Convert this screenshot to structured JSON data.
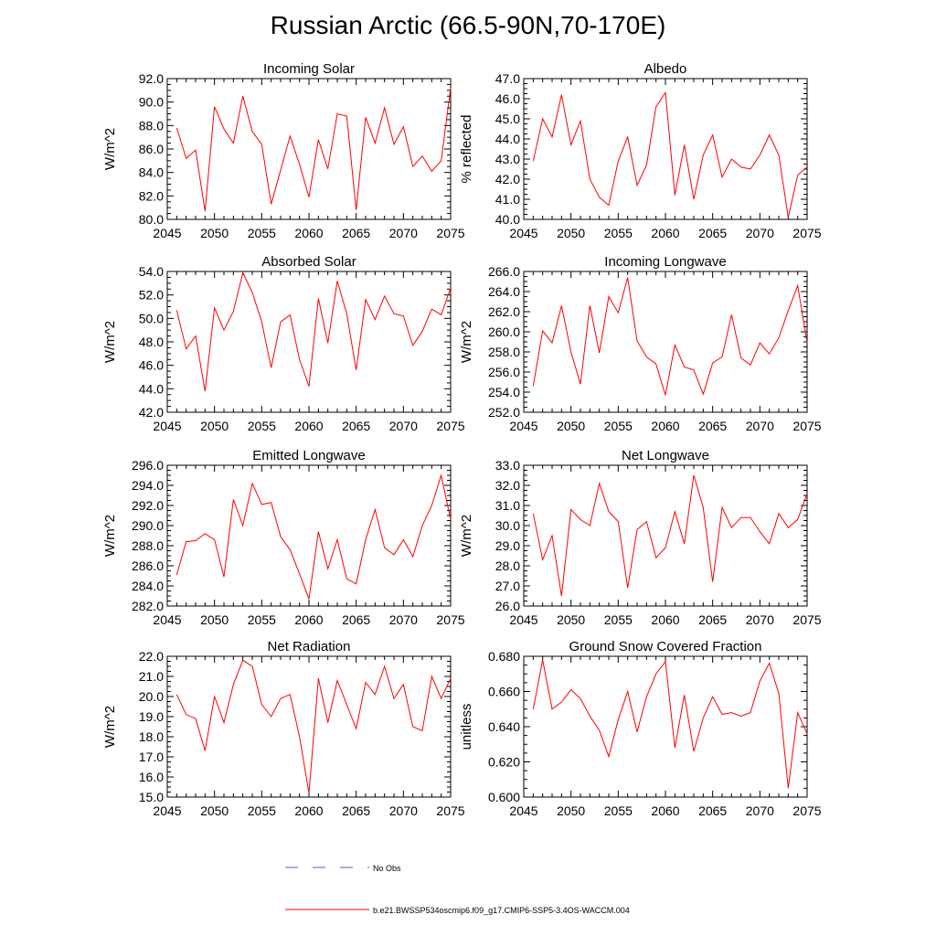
{
  "page_title": "Russian Arctic (66.5-90N,70-170E)",
  "legend": {
    "obs_label": "No Obs",
    "model_label": "b.e21.BWSSP534oscmip6.f09_g17.CMIP6-SSP5-3.4OS-WACCM.004",
    "obs_color": "#5a5acb",
    "model_color": "#ff0000"
  },
  "chart_data": [
    {
      "type": "line",
      "title": "Incoming Solar",
      "ylabel": "W/m^2",
      "xlim": [
        2045,
        2075
      ],
      "ylim": [
        80.0,
        92.0
      ],
      "ystep": 2.0,
      "ydec": 1,
      "yticks_labels": [
        "80.0",
        "82.0",
        "84.0",
        "86.0",
        "88.0",
        "90.0",
        "92.0"
      ],
      "xticks": [
        2045,
        2050,
        2055,
        2060,
        2065,
        2070,
        2075
      ],
      "x": [
        2046,
        2047,
        2048,
        2049,
        2050,
        2051,
        2052,
        2053,
        2054,
        2055,
        2056,
        2057,
        2058,
        2059,
        2060,
        2061,
        2062,
        2063,
        2064,
        2065,
        2066,
        2067,
        2068,
        2069,
        2070,
        2071,
        2072,
        2073,
        2074,
        2075
      ],
      "values": [
        87.8,
        85.2,
        85.9,
        80.7,
        89.6,
        87.7,
        86.5,
        90.5,
        87.5,
        86.4,
        81.3,
        84.2,
        87.1,
        84.7,
        81.9,
        86.8,
        84.3,
        89.0,
        88.8,
        80.8,
        88.7,
        86.5,
        89.5,
        86.4,
        87.9,
        84.5,
        85.4,
        84.1,
        85.0,
        91.2
      ],
      "color": "#ff0000"
    },
    {
      "type": "line",
      "title": "Albedo",
      "ylabel": "% reflected",
      "xlim": [
        2045,
        2075
      ],
      "ylim": [
        40.0,
        47.0
      ],
      "ystep": 1.0,
      "ydec": 1,
      "yticks_labels": [
        "40.0",
        "41.0",
        "42.0",
        "43.0",
        "44.0",
        "45.0",
        "46.0",
        "47.0"
      ],
      "xticks": [
        2045,
        2050,
        2055,
        2060,
        2065,
        2070,
        2075
      ],
      "x": [
        2046,
        2047,
        2048,
        2049,
        2050,
        2051,
        2052,
        2053,
        2054,
        2055,
        2056,
        2057,
        2058,
        2059,
        2060,
        2061,
        2062,
        2063,
        2064,
        2065,
        2066,
        2067,
        2068,
        2069,
        2070,
        2071,
        2072,
        2073,
        2074,
        2075
      ],
      "values": [
        42.9,
        45.0,
        44.1,
        46.2,
        43.7,
        44.9,
        42.0,
        41.1,
        40.7,
        42.9,
        44.1,
        41.7,
        42.7,
        45.6,
        46.3,
        41.2,
        43.7,
        41.0,
        43.2,
        44.2,
        42.1,
        43.0,
        42.6,
        42.5,
        43.2,
        44.2,
        43.2,
        40.1,
        42.2,
        42.6
      ],
      "color": "#ff0000"
    },
    {
      "type": "line",
      "title": "Absorbed Solar",
      "ylabel": "W/m^2",
      "xlim": [
        2045,
        2075
      ],
      "ylim": [
        42.0,
        54.0
      ],
      "ystep": 2.0,
      "ydec": 1,
      "yticks_labels": [
        "42.0",
        "44.0",
        "46.0",
        "48.0",
        "50.0",
        "52.0",
        "54.0"
      ],
      "xticks": [
        2045,
        2050,
        2055,
        2060,
        2065,
        2070,
        2075
      ],
      "x": [
        2046,
        2047,
        2048,
        2049,
        2050,
        2051,
        2052,
        2053,
        2054,
        2055,
        2056,
        2057,
        2058,
        2059,
        2060,
        2061,
        2062,
        2063,
        2064,
        2065,
        2066,
        2067,
        2068,
        2069,
        2070,
        2071,
        2072,
        2073,
        2074,
        2075
      ],
      "values": [
        50.7,
        47.4,
        48.5,
        43.8,
        50.9,
        49.0,
        50.6,
        53.9,
        52.2,
        49.7,
        45.8,
        49.7,
        50.3,
        46.5,
        44.2,
        51.7,
        47.9,
        53.2,
        50.4,
        45.6,
        51.6,
        49.9,
        51.9,
        50.4,
        50.2,
        47.7,
        48.9,
        50.8,
        50.3,
        52.6
      ],
      "color": "#ff0000"
    },
    {
      "type": "line",
      "title": "Incoming Longwave",
      "ylabel": "W/m^2",
      "xlim": [
        2045,
        2075
      ],
      "ylim": [
        252.0,
        266.0
      ],
      "ystep": 2.0,
      "ydec": 1,
      "yticks_labels": [
        "252.0",
        "254.0",
        "256.0",
        "258.0",
        "260.0",
        "262.0",
        "264.0",
        "266.0"
      ],
      "xticks": [
        2045,
        2050,
        2055,
        2060,
        2065,
        2070,
        2075
      ],
      "x": [
        2046,
        2047,
        2048,
        2049,
        2050,
        2051,
        2052,
        2053,
        2054,
        2055,
        2056,
        2057,
        2058,
        2059,
        2060,
        2061,
        2062,
        2063,
        2064,
        2065,
        2066,
        2067,
        2068,
        2069,
        2070,
        2071,
        2072,
        2073,
        2074,
        2075
      ],
      "values": [
        254.6,
        260.1,
        258.9,
        262.6,
        258.0,
        254.8,
        262.6,
        257.9,
        263.5,
        261.9,
        265.4,
        259.1,
        257.5,
        256.8,
        253.7,
        258.7,
        256.5,
        256.2,
        253.8,
        256.9,
        257.5,
        261.7,
        257.4,
        256.7,
        258.9,
        257.8,
        259.4,
        262.1,
        264.6,
        258.9
      ],
      "color": "#ff0000"
    },
    {
      "type": "line",
      "title": "Emitted Longwave",
      "ylabel": "W/m^2",
      "xlim": [
        2045,
        2075
      ],
      "ylim": [
        282.0,
        296.0
      ],
      "ystep": 2.0,
      "ydec": 1,
      "yticks_labels": [
        "282.0",
        "284.0",
        "286.0",
        "288.0",
        "290.0",
        "292.0",
        "294.0",
        "296.0"
      ],
      "xticks": [
        2045,
        2050,
        2055,
        2060,
        2065,
        2070,
        2075
      ],
      "x": [
        2046,
        2047,
        2048,
        2049,
        2050,
        2051,
        2052,
        2053,
        2054,
        2055,
        2056,
        2057,
        2058,
        2059,
        2060,
        2061,
        2062,
        2063,
        2064,
        2065,
        2066,
        2067,
        2068,
        2069,
        2070,
        2071,
        2072,
        2073,
        2074,
        2075
      ],
      "values": [
        285.1,
        288.4,
        288.5,
        289.2,
        288.6,
        284.9,
        292.6,
        290.0,
        294.2,
        292.1,
        292.3,
        288.9,
        287.6,
        285.2,
        282.7,
        289.4,
        285.7,
        288.6,
        284.7,
        284.2,
        288.6,
        291.6,
        287.8,
        287.1,
        288.6,
        286.9,
        290.0,
        292.0,
        295.0,
        290.6
      ],
      "color": "#ff0000"
    },
    {
      "type": "line",
      "title": "Net Longwave",
      "ylabel": "W/m^2",
      "xlim": [
        2045,
        2075
      ],
      "ylim": [
        26.0,
        33.0
      ],
      "ystep": 1.0,
      "ydec": 1,
      "yticks_labels": [
        "26.0",
        "27.0",
        "28.0",
        "29.0",
        "30.0",
        "31.0",
        "32.0",
        "33.0"
      ],
      "xticks": [
        2045,
        2050,
        2055,
        2060,
        2065,
        2070,
        2075
      ],
      "x": [
        2046,
        2047,
        2048,
        2049,
        2050,
        2051,
        2052,
        2053,
        2054,
        2055,
        2056,
        2057,
        2058,
        2059,
        2060,
        2061,
        2062,
        2063,
        2064,
        2065,
        2066,
        2067,
        2068,
        2069,
        2070,
        2071,
        2072,
        2073,
        2074,
        2075
      ],
      "values": [
        30.6,
        28.3,
        29.5,
        26.5,
        30.8,
        30.3,
        30.0,
        32.1,
        30.7,
        30.2,
        26.9,
        29.8,
        30.2,
        28.4,
        28.9,
        30.7,
        29.1,
        32.5,
        30.9,
        27.2,
        30.9,
        29.9,
        30.4,
        30.4,
        29.7,
        29.1,
        30.6,
        29.9,
        30.3,
        31.6
      ],
      "color": "#ff0000"
    },
    {
      "type": "line",
      "title": "Net Radiation",
      "ylabel": "W/m^2",
      "xlim": [
        2045,
        2075
      ],
      "ylim": [
        15.0,
        22.0
      ],
      "ystep": 1.0,
      "ydec": 1,
      "yticks_labels": [
        "15.0",
        "16.0",
        "17.0",
        "18.0",
        "19.0",
        "20.0",
        "21.0",
        "22.0"
      ],
      "xticks": [
        2045,
        2050,
        2055,
        2060,
        2065,
        2070,
        2075
      ],
      "x": [
        2046,
        2047,
        2048,
        2049,
        2050,
        2051,
        2052,
        2053,
        2054,
        2055,
        2056,
        2057,
        2058,
        2059,
        2060,
        2061,
        2062,
        2063,
        2064,
        2065,
        2066,
        2067,
        2068,
        2069,
        2070,
        2071,
        2072,
        2073,
        2074,
        2075
      ],
      "values": [
        20.1,
        19.1,
        18.9,
        17.3,
        20.0,
        18.7,
        20.6,
        21.8,
        21.5,
        19.6,
        19.0,
        19.9,
        20.1,
        18.0,
        15.2,
        20.9,
        18.7,
        20.8,
        19.6,
        18.4,
        20.7,
        20.1,
        21.5,
        19.9,
        20.6,
        18.5,
        18.3,
        21.0,
        19.9,
        20.9
      ],
      "color": "#ff0000"
    },
    {
      "type": "line",
      "title": "Ground Snow Covered Fraction",
      "ylabel": "unitless",
      "xlim": [
        2045,
        2075
      ],
      "ylim": [
        0.6,
        0.68
      ],
      "ystep": 0.02,
      "ydec": 3,
      "yticks_labels": [
        "0.600",
        "0.620",
        "0.640",
        "0.660",
        "0.680"
      ],
      "xticks": [
        2045,
        2050,
        2055,
        2060,
        2065,
        2070,
        2075
      ],
      "x": [
        2046,
        2047,
        2048,
        2049,
        2050,
        2051,
        2052,
        2053,
        2054,
        2055,
        2056,
        2057,
        2058,
        2059,
        2060,
        2061,
        2062,
        2063,
        2064,
        2065,
        2066,
        2067,
        2068,
        2069,
        2070,
        2071,
        2072,
        2073,
        2074,
        2075
      ],
      "values": [
        0.65,
        0.678,
        0.65,
        0.654,
        0.661,
        0.656,
        0.646,
        0.638,
        0.623,
        0.644,
        0.66,
        0.637,
        0.657,
        0.67,
        0.677,
        0.628,
        0.658,
        0.626,
        0.645,
        0.657,
        0.647,
        0.648,
        0.646,
        0.648,
        0.666,
        0.676,
        0.659,
        0.605,
        0.648,
        0.636
      ],
      "color": "#ff0000"
    }
  ]
}
